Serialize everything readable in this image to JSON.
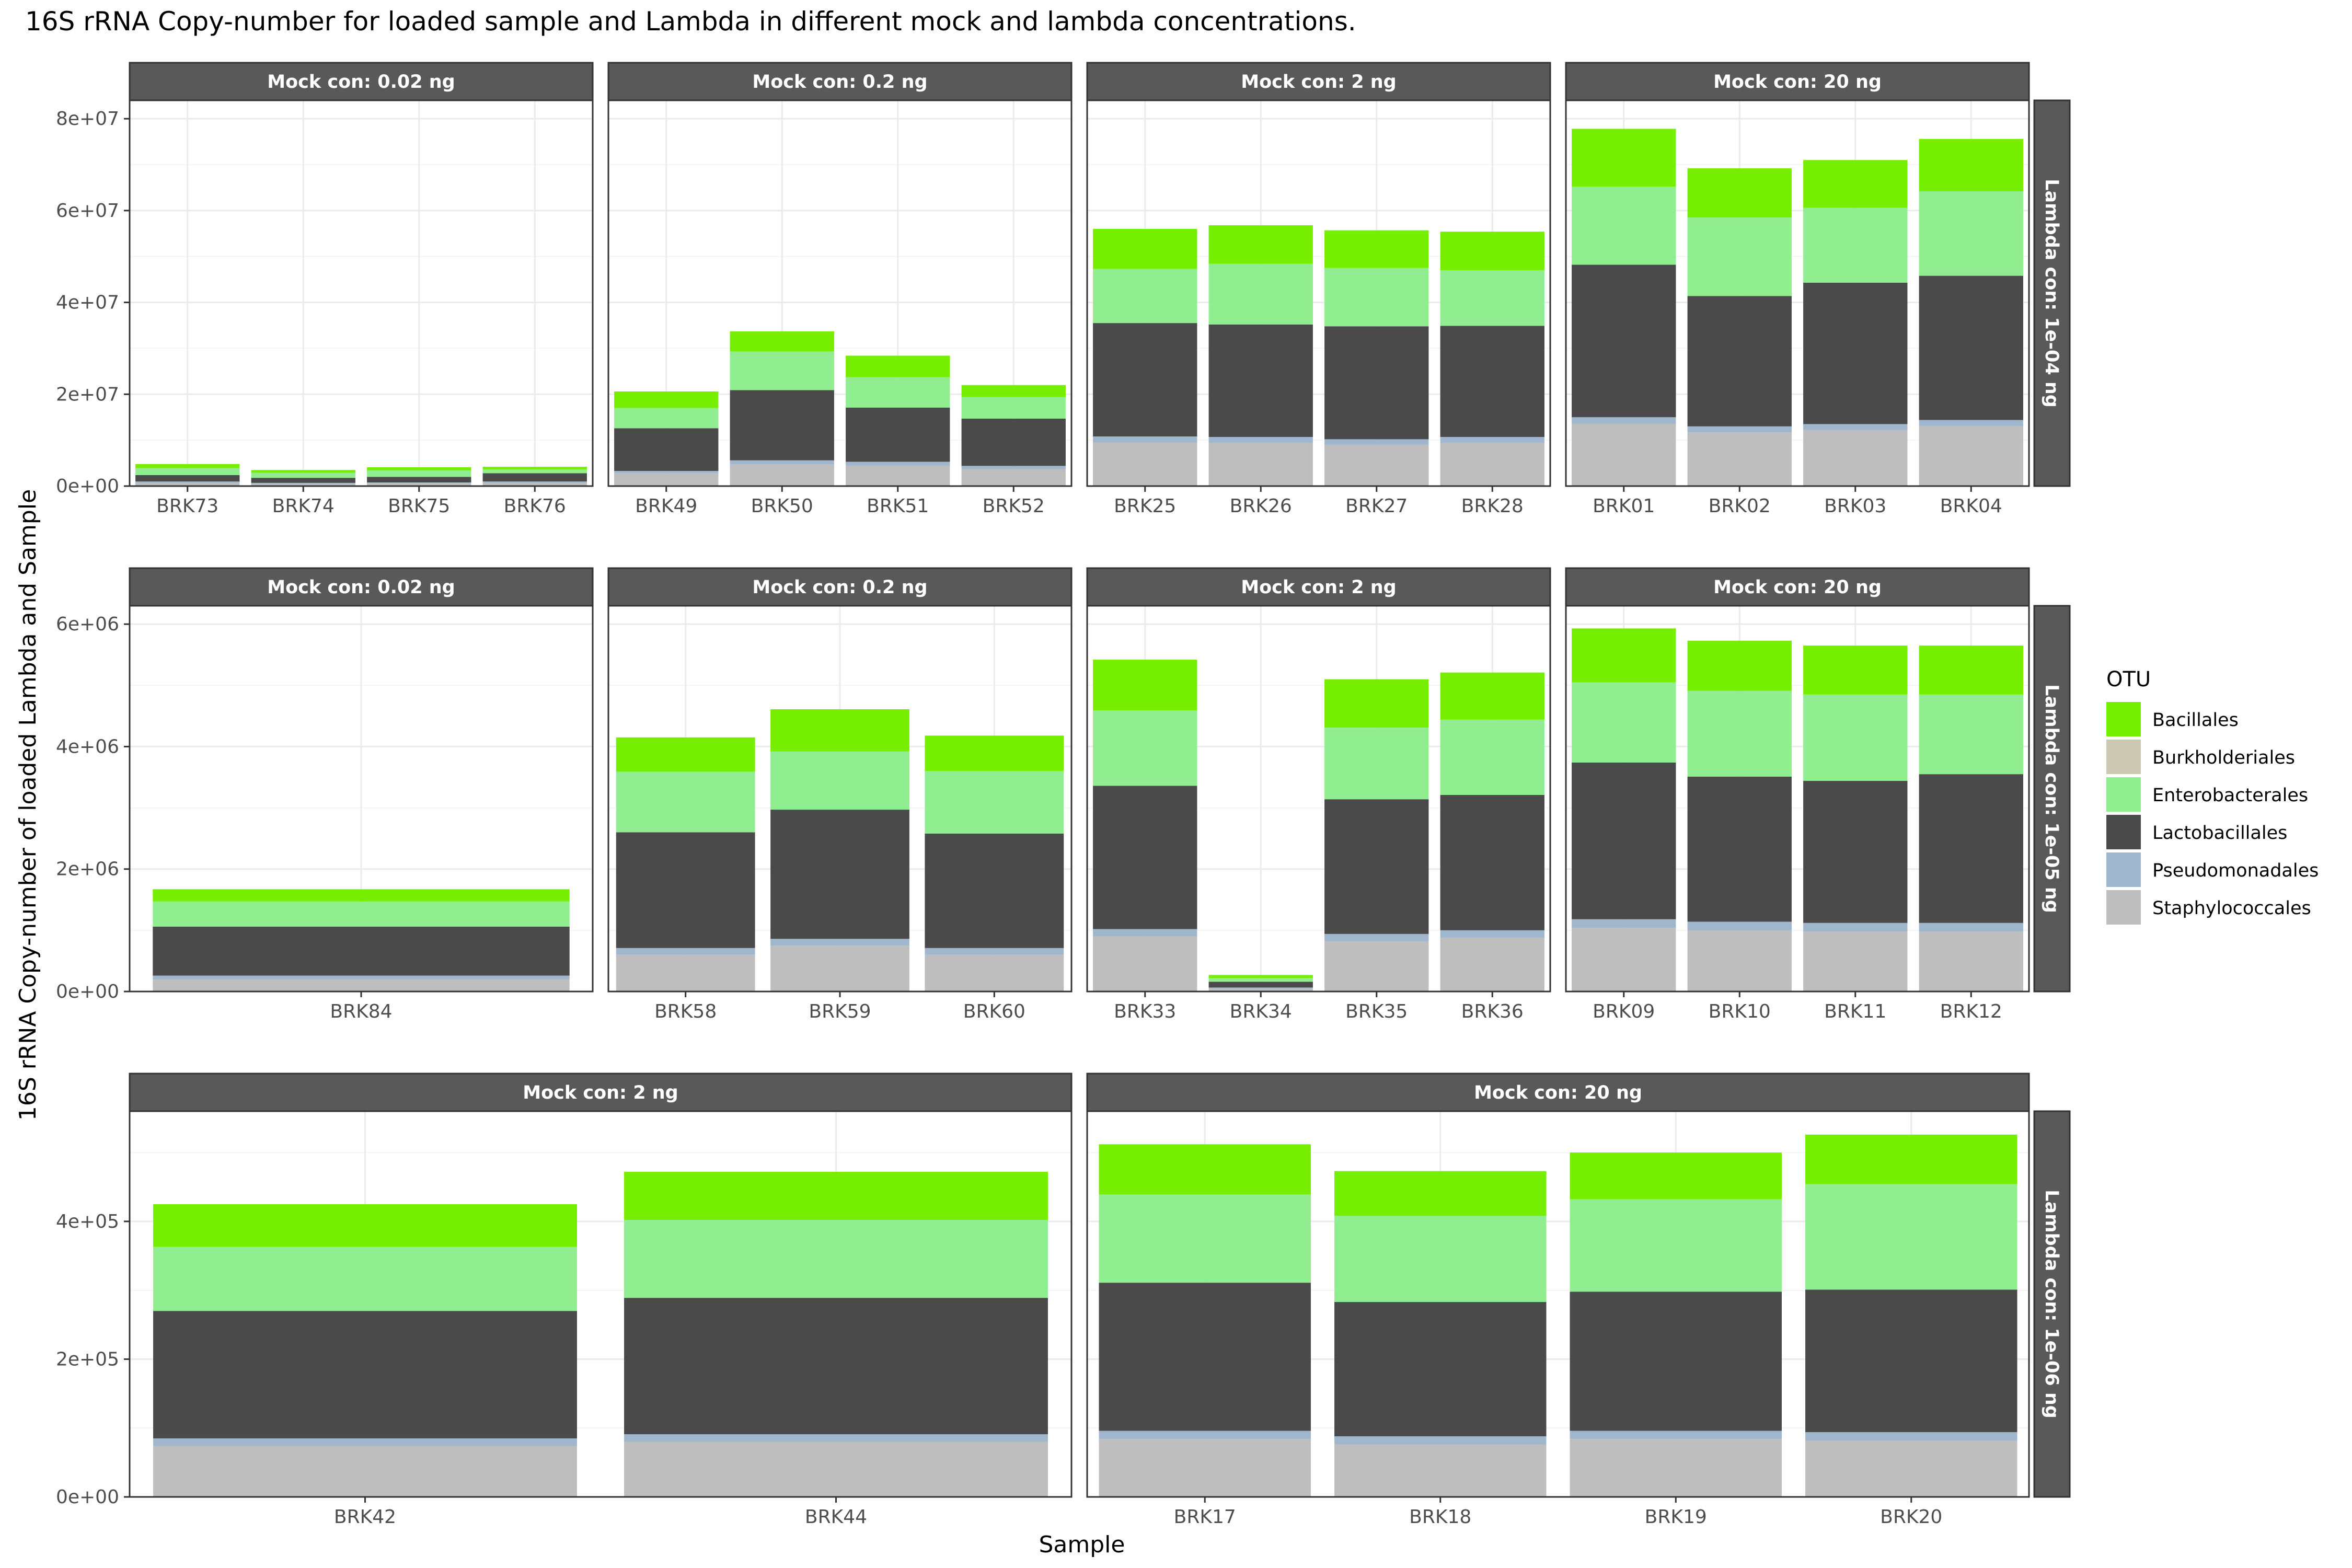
{
  "chart_data": {
    "type": "bar",
    "stacked": true,
    "title": "16S rRNA Copy-number for loaded sample and Lambda in different mock and lambda concentrations.",
    "xlabel": "Sample",
    "ylabel": "16S rRNA Copy-number of loaded Lambda and Sample",
    "legend": {
      "title": "OTU",
      "position": "right"
    },
    "grid": true,
    "colors": {
      "Bacillales": "#76EE00",
      "Burkholderiales": "#CDC8B1",
      "Enterobacterales": "#90EE90",
      "Lactobacillales": "#4A4A4A",
      "Pseudomonadales": "#9FB6CD",
      "Staphylococcales": "#BEBEBE"
    },
    "series_order": [
      "Bacillales",
      "Burkholderiales",
      "Enterobacterales",
      "Lactobacillales",
      "Pseudomonadales",
      "Staphylococcales"
    ],
    "stack_order": [
      "Staphylococcales",
      "Pseudomonadales",
      "Lactobacillales",
      "Enterobacterales",
      "Bacillales"
    ],
    "rows": [
      {
        "strip": "Lambda con: 1e-04 ng",
        "ylim": [
          0,
          84000000
        ],
        "yticks": [
          0,
          20000000,
          40000000,
          60000000,
          80000000
        ],
        "ytick_labels": [
          "0e+00",
          "2e+07",
          "4e+07",
          "6e+07",
          "8e+07"
        ],
        "facets": [
          {
            "strip": "Mock con: 0.02 ng",
            "categories": [
              "BRK73",
              "BRK74",
              "BRK75",
              "BRK76"
            ],
            "stacks": [
              [
                700000,
                300000,
                1400000,
                1500000,
                900000
              ],
              [
                500000,
                200000,
                1100000,
                1100000,
                600000
              ],
              [
                600000,
                200000,
                1200000,
                1400000,
                700000
              ],
              [
                700000,
                300000,
                1800000,
                800000,
                600000
              ]
            ]
          },
          {
            "strip": "Mock con: 0.2 ng",
            "categories": [
              "BRK49",
              "BRK50",
              "BRK51",
              "BRK52"
            ],
            "stacks": [
              [
                2800000,
                500000,
                9300000,
                4400000,
                3600000
              ],
              [
                4700000,
                900000,
                15300000,
                8400000,
                4400000
              ],
              [
                4500000,
                800000,
                11800000,
                6600000,
                4700000
              ],
              [
                3700000,
                700000,
                10300000,
                4700000,
                2600000
              ]
            ]
          },
          {
            "strip": "Mock con: 2 ng",
            "categories": [
              "BRK25",
              "BRK26",
              "BRK27",
              "BRK28"
            ],
            "stacks": [
              [
                9500000,
                1300000,
                24700000,
                11800000,
                8700000
              ],
              [
                9400000,
                1300000,
                24500000,
                13200000,
                8400000
              ],
              [
                9000000,
                1200000,
                24600000,
                12700000,
                8200000
              ],
              [
                9400000,
                1300000,
                24200000,
                12100000,
                8400000
              ]
            ]
          },
          {
            "strip": "Mock con: 20 ng",
            "categories": [
              "BRK01",
              "BRK02",
              "BRK03",
              "BRK04"
            ],
            "stacks": [
              [
                13600000,
                1400000,
                33200000,
                17000000,
                12600000
              ],
              [
                11700000,
                1300000,
                28400000,
                17100000,
                10700000
              ],
              [
                12200000,
                1300000,
                30800000,
                16300000,
                10400000
              ],
              [
                13000000,
                1400000,
                31400000,
                18400000,
                11400000
              ]
            ]
          }
        ]
      },
      {
        "strip": "Lambda con: 1e-05 ng",
        "ylim": [
          0,
          6300000
        ],
        "yticks": [
          0,
          2000000,
          4000000,
          6000000
        ],
        "ytick_labels": [
          "0e+00",
          "2e+06",
          "4e+06",
          "6e+06"
        ],
        "facets": [
          {
            "strip": "Mock con: 0.02 ng",
            "categories": [
              "BRK84"
            ],
            "stacks": [
              [
                200000,
                60000,
                800000,
                410000,
                200000
              ]
            ]
          },
          {
            "strip": "Mock con: 0.2 ng",
            "categories": [
              "BRK58",
              "BRK59",
              "BRK60"
            ],
            "stacks": [
              [
                600000,
                110000,
                1890000,
                990000,
                560000
              ],
              [
                750000,
                110000,
                2110000,
                950000,
                690000
              ],
              [
                600000,
                110000,
                1870000,
                1020000,
                580000
              ]
            ]
          },
          {
            "strip": "Mock con: 2 ng",
            "categories": [
              "BRK33",
              "BRK34",
              "BRK35",
              "BRK36"
            ],
            "stacks": [
              [
                900000,
                120000,
                2340000,
                1230000,
                830000
              ],
              [
                50000,
                15000,
                95000,
                60000,
                50000
              ],
              [
                820000,
                120000,
                2200000,
                1170000,
                790000
              ],
              [
                880000,
                120000,
                2210000,
                1230000,
                770000
              ]
            ]
          },
          {
            "strip": "Mock con: 20 ng",
            "categories": [
              "BRK09",
              "BRK10",
              "BRK11",
              "BRK12"
            ],
            "stacks": [
              [
                1040000,
                140000,
                2560000,
                1310000,
                880000
              ],
              [
                1000000,
                140000,
                2370000,
                1400000,
                820000
              ],
              [
                980000,
                140000,
                2320000,
                1410000,
                800000
              ],
              [
                980000,
                140000,
                2430000,
                1300000,
                800000
              ]
            ]
          }
        ]
      },
      {
        "strip": "Lambda con: 1e-06 ng",
        "ylim": [
          0,
          560000
        ],
        "yticks": [
          0,
          200000,
          400000
        ],
        "ytick_labels": [
          "0e+00",
          "2e+05",
          "4e+05"
        ],
        "facets": [
          {
            "strip": "Mock con: 2 ng",
            "categories": [
              "BRK42",
              "BRK44"
            ],
            "stacks": [
              [
                74000,
                11000,
                185000,
                93000,
                62000
              ],
              [
                80000,
                11000,
                198000,
                113000,
                70000
              ]
            ]
          },
          {
            "strip": "Mock con: 20 ng",
            "categories": [
              "BRK17",
              "BRK18",
              "BRK19",
              "BRK20"
            ],
            "stacks": [
              [
                84000,
                12000,
                215000,
                128000,
                73000
              ],
              [
                76000,
                12000,
                195000,
                125000,
                65000
              ],
              [
                84000,
                12000,
                202000,
                134000,
                68000
              ],
              [
                82000,
                12000,
                207000,
                153000,
                72000
              ]
            ]
          }
        ]
      }
    ]
  }
}
